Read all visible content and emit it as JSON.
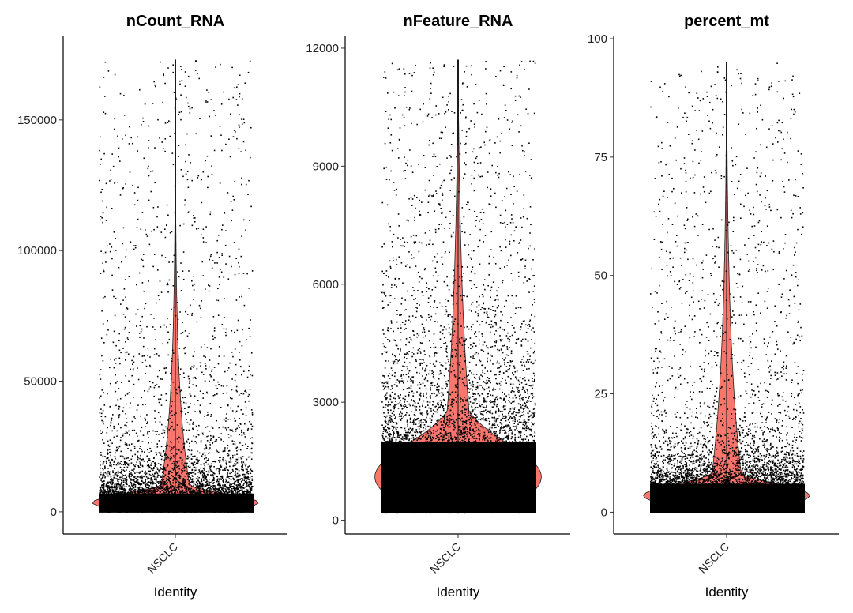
{
  "chart_data": [
    {
      "type": "violin",
      "title": "nCount_RNA",
      "xlabel": "Identity",
      "ylabel": "",
      "categories": [
        "NSCLC"
      ],
      "yticks": [
        0,
        50000,
        100000,
        150000
      ],
      "ytick_labels": [
        "0",
        "50000",
        "100000",
        "150000"
      ],
      "ylim": [
        -8500,
        182000
      ],
      "data_range": [
        0,
        173000
      ],
      "distribution": {
        "median": 3500,
        "q75": 7000,
        "q95": 22000,
        "q99": 50000,
        "max": 173000
      },
      "grid": false,
      "legend": "none",
      "fill_color": "#f8766d",
      "point_color": "#000000"
    },
    {
      "type": "violin",
      "title": "nFeature_RNA",
      "xlabel": "Identity",
      "ylabel": "",
      "categories": [
        "NSCLC"
      ],
      "yticks": [
        0,
        3000,
        6000,
        9000,
        12000
      ],
      "ytick_labels": [
        "0",
        "3000",
        "6000",
        "9000",
        "12000"
      ],
      "ylim": [
        -350,
        12300
      ],
      "data_range": [
        200,
        11700
      ],
      "distribution": {
        "median": 1100,
        "q75": 2000,
        "q95": 4500,
        "q99": 7500,
        "max": 11700
      },
      "grid": false,
      "legend": "none",
      "fill_color": "#f8766d",
      "point_color": "#000000"
    },
    {
      "type": "violin",
      "title": "percent_mt",
      "xlabel": "Identity",
      "ylabel": "",
      "categories": [
        "NSCLC"
      ],
      "yticks": [
        0,
        25,
        50,
        75,
        100
      ],
      "ytick_labels": [
        "0",
        "25",
        "50",
        "75",
        "100"
      ],
      "ylim": [
        -4.6,
        100.5
      ],
      "data_range": [
        0,
        95
      ],
      "distribution": {
        "median": 3.5,
        "q75": 6,
        "q95": 15,
        "q99": 45,
        "max": 95
      },
      "grid": false,
      "legend": "none",
      "fill_color": "#f8766d",
      "point_color": "#000000"
    }
  ]
}
